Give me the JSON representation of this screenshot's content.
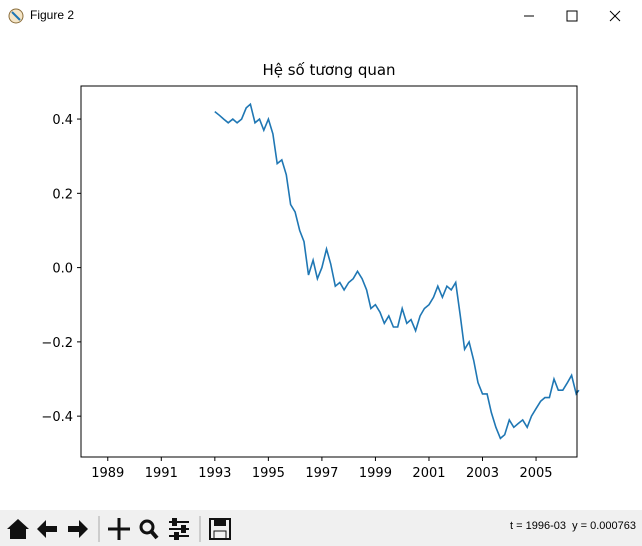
{
  "window": {
    "title": "Figure 2"
  },
  "chart_data": {
    "type": "line",
    "title": "Hệ số tương quan",
    "x": [
      1993.0,
      1993.17,
      1993.33,
      1993.5,
      1993.67,
      1993.83,
      1994.0,
      1994.17,
      1994.33,
      1994.5,
      1994.67,
      1994.83,
      1995.0,
      1995.17,
      1995.33,
      1995.5,
      1995.67,
      1995.83,
      1996.0,
      1996.17,
      1996.33,
      1996.5,
      1996.67,
      1996.83,
      1997.0,
      1997.17,
      1997.33,
      1997.5,
      1997.67,
      1997.83,
      1998.0,
      1998.17,
      1998.33,
      1998.5,
      1998.67,
      1998.83,
      1999.0,
      1999.17,
      1999.33,
      1999.5,
      1999.67,
      1999.83,
      2000.0,
      2000.17,
      2000.33,
      2000.5,
      2000.67,
      2000.83,
      2001.0,
      2001.17,
      2001.33,
      2001.5,
      2001.67,
      2001.83,
      2002.0,
      2002.17,
      2002.33,
      2002.5,
      2002.67,
      2002.83,
      2003.0,
      2003.17,
      2003.33,
      2003.5,
      2003.67,
      2003.83,
      2004.0,
      2004.17,
      2004.33,
      2004.5,
      2004.67,
      2004.83,
      2005.0,
      2005.17,
      2005.33,
      2005.5,
      2005.67,
      2005.83,
      2006.0,
      2006.17,
      2006.33,
      2006.5,
      2006.6
    ],
    "values": [
      0.42,
      0.41,
      0.4,
      0.39,
      0.4,
      0.39,
      0.4,
      0.43,
      0.44,
      0.39,
      0.4,
      0.37,
      0.4,
      0.36,
      0.28,
      0.29,
      0.25,
      0.17,
      0.15,
      0.1,
      0.07,
      -0.02,
      0.02,
      -0.03,
      0.0,
      0.05,
      0.01,
      -0.05,
      -0.04,
      -0.06,
      -0.04,
      -0.03,
      -0.01,
      -0.03,
      -0.06,
      -0.11,
      -0.1,
      -0.12,
      -0.15,
      -0.13,
      -0.16,
      -0.16,
      -0.11,
      -0.15,
      -0.14,
      -0.17,
      -0.13,
      -0.11,
      -0.1,
      -0.08,
      -0.05,
      -0.08,
      -0.05,
      -0.06,
      -0.04,
      -0.13,
      -0.22,
      -0.2,
      -0.25,
      -0.31,
      -0.34,
      -0.34,
      -0.39,
      -0.43,
      -0.46,
      -0.45,
      -0.41,
      -0.43,
      -0.42,
      -0.41,
      -0.43,
      -0.4,
      -0.38,
      -0.36,
      -0.35,
      -0.35,
      -0.3,
      -0.33,
      -0.33,
      -0.31,
      -0.29,
      -0.34,
      -0.33
    ],
    "color": "#1f77b4",
    "xlim": [
      1988.0,
      2006.53
    ],
    "xticks": [
      1989,
      1991,
      1993,
      1995,
      1997,
      1999,
      2001,
      2003,
      2005
    ],
    "ylim": [
      -0.51,
      0.489
    ],
    "yticks": [
      {
        "value": -0.4,
        "label": "−0.4"
      },
      {
        "value": -0.2,
        "label": "−0.2"
      },
      {
        "value": 0,
        "label": "0.0"
      },
      0.2,
      0.4
    ]
  },
  "status": "t = 1996-03  y = 0.000763"
}
